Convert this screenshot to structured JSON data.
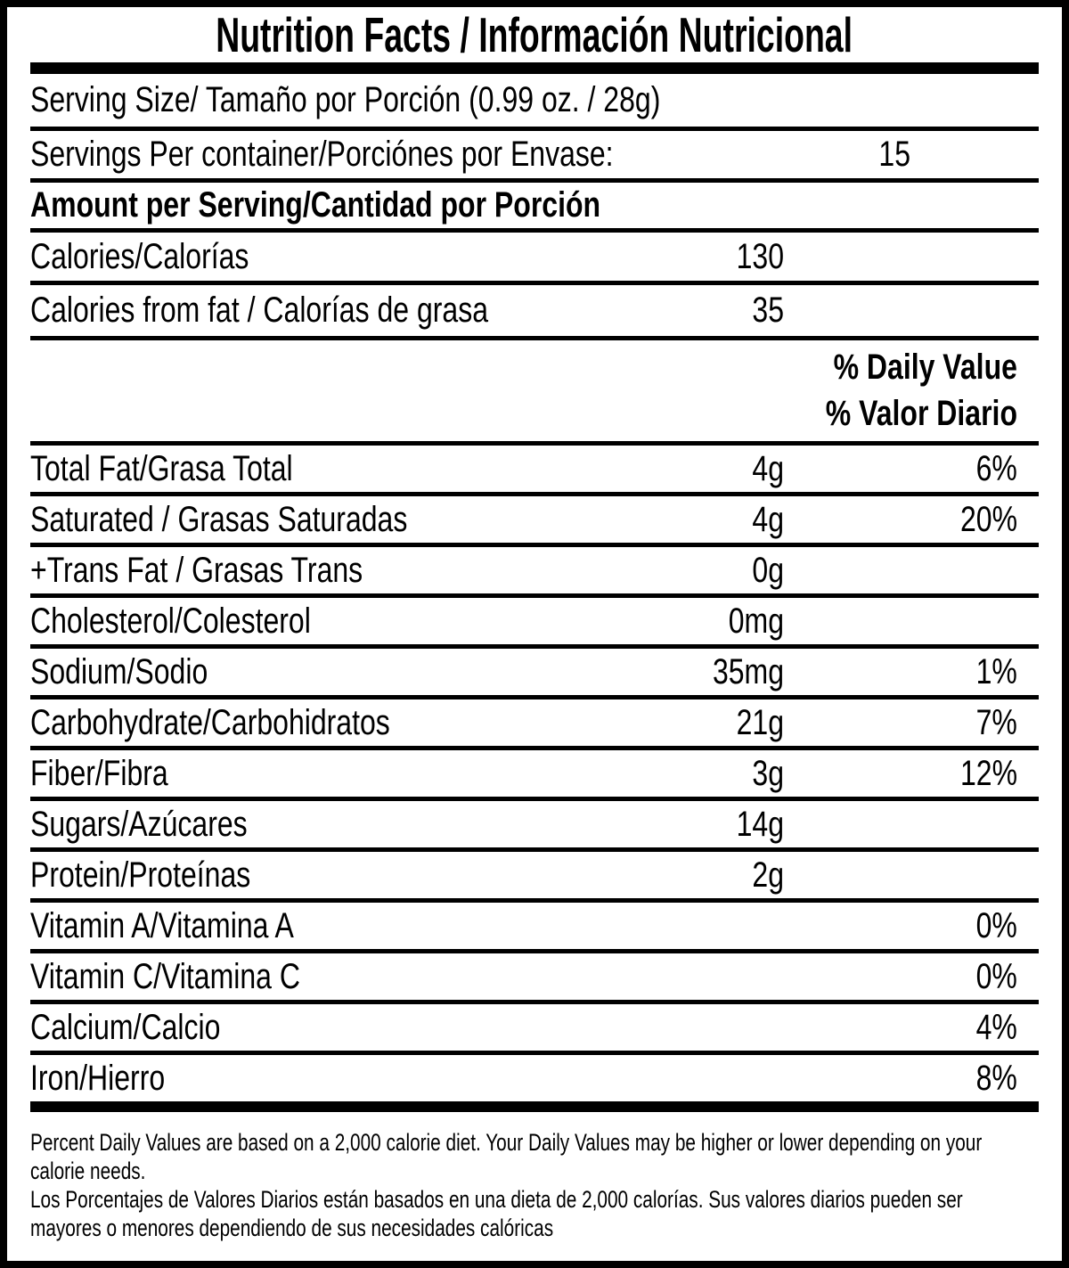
{
  "label": {
    "title": "Nutrition Facts / Información Nutricional",
    "serving_size_row": "Serving Size/ Tamaño por Porción (0.99 oz. / 28g)",
    "servings_row": {
      "label": "Servings Per container/Porciónes por Envase:",
      "value": "15"
    },
    "amount_header": "Amount per Serving/Cantidad por Porción",
    "calories_row": {
      "label": "Calories/Calorías",
      "value": "130"
    },
    "calories_fat_row": {
      "label": "Calories from fat / Calorías de grasa",
      "value": "35"
    },
    "daily_value_header": {
      "line1": "% Daily Value",
      "line2": "% Valor Diario"
    },
    "nutrients": [
      {
        "label": "Total Fat/Grasa Total",
        "amount": "4g",
        "percent": "6%"
      },
      {
        "label": "Saturated / Grasas Saturadas",
        "amount": "4g",
        "percent": "20%"
      },
      {
        "label": "+Trans Fat / Grasas Trans",
        "amount": "0g",
        "percent": ""
      },
      {
        "label": "Cholesterol/Colesterol",
        "amount": "0mg",
        "percent": ""
      },
      {
        "label": "Sodium/Sodio",
        "amount": "35mg",
        "percent": "1%"
      },
      {
        "label": "Carbohydrate/Carbohidratos",
        "amount": "21g",
        "percent": "7%"
      },
      {
        "label": "Fiber/Fibra",
        "amount": "3g",
        "percent": "12%"
      },
      {
        "label": "Sugars/Azúcares",
        "amount": "14g",
        "percent": ""
      },
      {
        "label": "Protein/Proteínas",
        "amount": "2g",
        "percent": ""
      },
      {
        "label": "Vitamin A/Vitamina A",
        "amount": "",
        "percent": "0%"
      },
      {
        "label": "Vitamin C/Vitamina C",
        "amount": "",
        "percent": "0%"
      },
      {
        "label": "Calcium/Calcio",
        "amount": "",
        "percent": "4%"
      },
      {
        "label": "Iron/Hierro",
        "amount": "",
        "percent": "8%"
      }
    ],
    "footnotes": {
      "en_line1": "Percent Daily Values are based on a 2,000 calorie diet. Your Daily Values may be higher or lower depending on your",
      "en_line2": "calorie needs.",
      "es_line1": "Los Porcentajes de Valores Diarios están basados en una dieta de 2,000 calorías. Sus valores diarios pueden ser",
      "es_line2": "mayores o menores dependiendo de sus necesidades calóricas"
    },
    "colors": {
      "ink": "#000000",
      "paper": "#ffffff"
    }
  }
}
